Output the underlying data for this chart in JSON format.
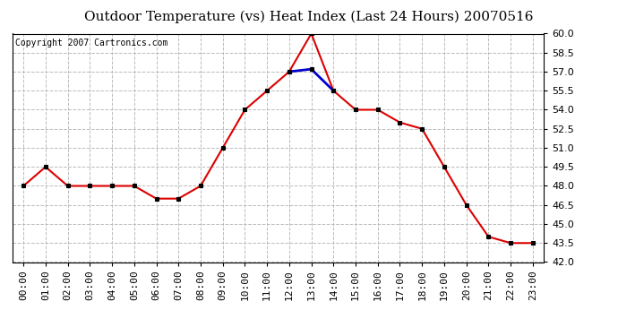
{
  "title": "Outdoor Temperature (vs) Heat Index (Last 24 Hours) 20070516",
  "copyright_text": "Copyright 2007 Cartronics.com",
  "x_labels": [
    "00:00",
    "01:00",
    "02:00",
    "03:00",
    "04:00",
    "05:00",
    "06:00",
    "07:00",
    "08:00",
    "09:00",
    "10:00",
    "11:00",
    "12:00",
    "13:00",
    "14:00",
    "15:00",
    "16:00",
    "17:00",
    "18:00",
    "19:00",
    "20:00",
    "21:00",
    "22:00",
    "23:00"
  ],
  "temp_values": [
    48.0,
    49.5,
    48.0,
    48.0,
    48.0,
    48.0,
    47.0,
    47.0,
    48.0,
    51.0,
    54.0,
    55.5,
    57.0,
    60.0,
    55.5,
    54.0,
    54.0,
    53.0,
    52.5,
    49.5,
    46.5,
    44.0,
    43.5,
    43.5
  ],
  "heat_values": [
    null,
    null,
    null,
    null,
    null,
    null,
    null,
    null,
    null,
    null,
    null,
    null,
    57.0,
    57.2,
    55.5,
    null,
    null,
    null,
    null,
    null,
    null,
    null,
    null,
    null
  ],
  "ylim_min": 42.0,
  "ylim_max": 60.0,
  "ytick_step": 1.5,
  "temp_color": "#dd0000",
  "heat_color": "#0000cc",
  "background_color": "#ffffff",
  "grid_color": "#bbbbbb",
  "marker": "s",
  "title_fontsize": 11,
  "tick_fontsize": 8,
  "copyright_fontsize": 7
}
